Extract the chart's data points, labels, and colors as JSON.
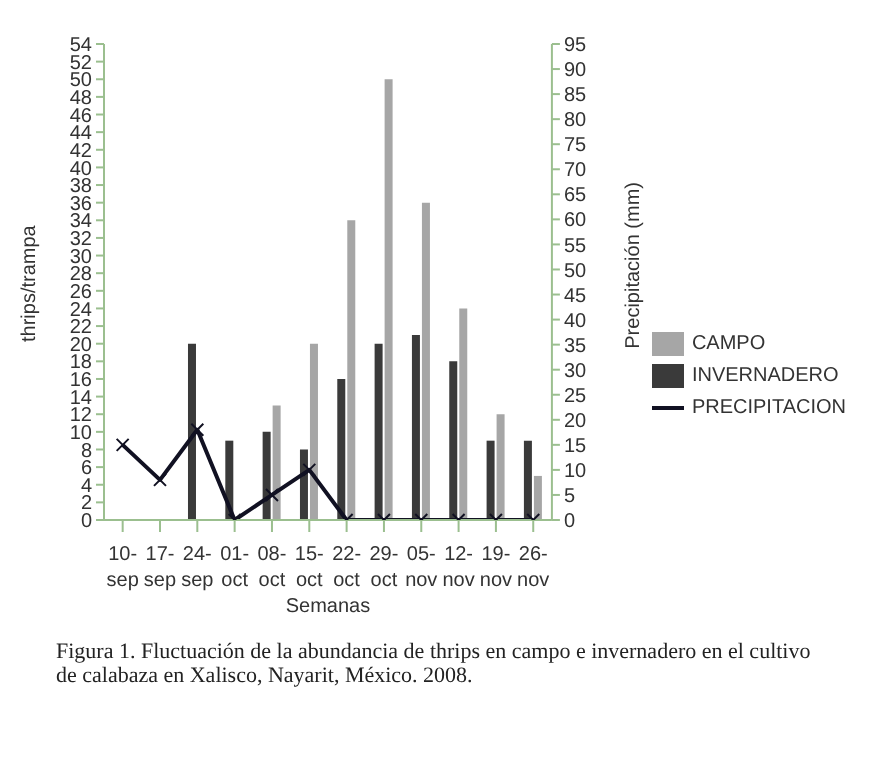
{
  "chart_data": {
    "type": "bar",
    "xlabel": "Semanas",
    "ylabel": "thrips/trampa",
    "y2label": "Precipitación (mm)",
    "categories": [
      "10-sep",
      "17-sep",
      "24-sep",
      "01-oct",
      "08-oct",
      "15-oct",
      "22-oct",
      "29-oct",
      "05-nov",
      "12-nov",
      "19-nov",
      "26-nov"
    ],
    "series": [
      {
        "name": "INVERNADERO",
        "color": "#3a3a3a",
        "values": [
          0,
          0,
          20,
          9,
          10,
          8,
          16,
          20,
          21,
          18,
          9,
          9
        ]
      },
      {
        "name": "CAMPO",
        "color": "#a6a6a6",
        "values": [
          0,
          0,
          0,
          0,
          13,
          20,
          34,
          50,
          36,
          24,
          12,
          5
        ]
      },
      {
        "name": "PRECIPITACION",
        "type": "line",
        "axis": "y2",
        "color": "#111122",
        "marker": "cross",
        "values": [
          15,
          8,
          18,
          0,
          5,
          10,
          0,
          0,
          0,
          0,
          0,
          0
        ]
      }
    ],
    "ylim": [
      0,
      54
    ],
    "yticks": [
      0,
      2,
      4,
      6,
      8,
      10,
      12,
      14,
      16,
      18,
      20,
      22,
      24,
      26,
      28,
      30,
      32,
      34,
      36,
      38,
      40,
      42,
      44,
      46,
      48,
      50,
      52,
      54
    ],
    "y2lim": [
      0,
      95
    ],
    "y2ticks": [
      0,
      5,
      10,
      15,
      20,
      25,
      30,
      35,
      40,
      45,
      50,
      55,
      60,
      65,
      70,
      75,
      80,
      85,
      90,
      95
    ],
    "grid": false,
    "legend": "right",
    "annotations": [
      "Figura 1.     Fluctuación de la abundancia de thrips en campo e invernadero en el cultivo de calabaza en Xalisco, Nayarit, México. 2008."
    ]
  }
}
